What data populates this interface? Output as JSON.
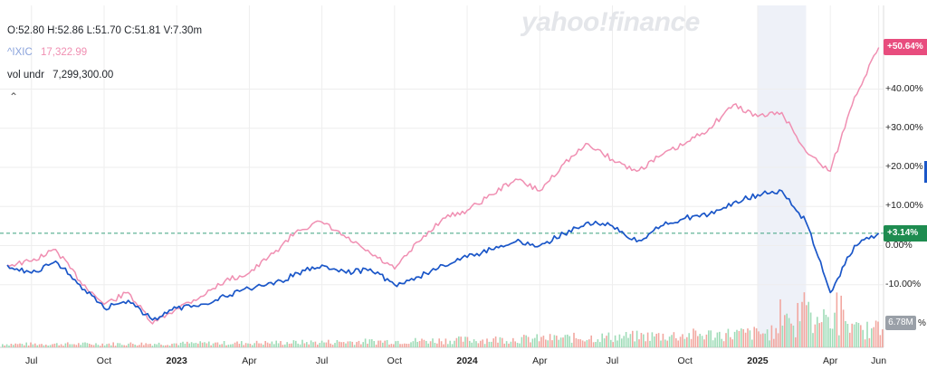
{
  "header": {
    "ohlc": "O:52.80  H:52.86  L:51.70  C:51.81  V:7.30m",
    "compare_symbol": "^IXIC",
    "compare_value": "17,322.99",
    "vol_label": "vol undr",
    "vol_value": "7,299,300.00",
    "collapse_icon": "chevron-up-icon",
    "logo": "yahoo!finance"
  },
  "colors": {
    "main": "#1a56c8",
    "compare": "#f08fb2",
    "vol_up": "#9fdcb8",
    "vol_down": "#f2a7a0",
    "grid": "#eeeeee",
    "highlight": "#eef1f8",
    "badge_compare": "#e84d7e",
    "badge_main": "#1e8c50"
  },
  "badges": {
    "compare_pct": "+50.64%",
    "main_pct": "+3.14%",
    "volume": "6.78M",
    "volume_unit": "%"
  },
  "chart_data": {
    "type": "line",
    "x_start": "2022-06",
    "x_end": "2025-06",
    "ylim": [
      -20,
      60
    ],
    "yticks": [
      "+40.00%",
      "+30.00%",
      "+20.00%",
      "+10.00%",
      "0.00%",
      "-10.00%"
    ],
    "xticks": [
      "Jul",
      "Oct",
      "2023",
      "Apr",
      "Jul",
      "Oct",
      "2024",
      "Apr",
      "Jul",
      "Oct",
      "2025",
      "Apr",
      "Jun"
    ],
    "xticks_bold": [
      "2023",
      "2024",
      "2025"
    ],
    "highlight_range": [
      "2025-01",
      "2025-03"
    ],
    "baseline": 3.14,
    "series": [
      {
        "name": "^IXIC",
        "x": [
          "2022-06",
          "2022-07",
          "2022-08",
          "2022-09",
          "2022-10",
          "2022-11",
          "2022-12",
          "2023-01",
          "2023-02",
          "2023-03",
          "2023-04",
          "2023-05",
          "2023-06",
          "2023-07",
          "2023-08",
          "2023-09",
          "2023-10",
          "2023-11",
          "2023-12",
          "2024-01",
          "2024-02",
          "2024-03",
          "2024-04",
          "2024-05",
          "2024-06",
          "2024-07",
          "2024-08",
          "2024-09",
          "2024-10",
          "2024-11",
          "2024-12",
          "2025-01",
          "2025-02",
          "2025-03",
          "2025-04",
          "2025-05",
          "2025-06"
        ],
        "values": [
          -5,
          -4,
          -1,
          -9,
          -15,
          -12,
          -20,
          -16,
          -13,
          -9,
          -7,
          -2,
          4,
          6,
          2,
          -2,
          -6,
          1,
          7,
          9,
          13,
          17,
          14,
          21,
          26,
          22,
          19,
          23,
          26,
          30,
          36,
          33,
          34,
          24,
          19,
          38,
          50.64
        ]
      },
      {
        "name": "",
        "x": [
          "2022-06",
          "2022-07",
          "2022-08",
          "2022-09",
          "2022-10",
          "2022-11",
          "2022-12",
          "2023-01",
          "2023-02",
          "2023-03",
          "2023-04",
          "2023-05",
          "2023-06",
          "2023-07",
          "2023-08",
          "2023-09",
          "2023-10",
          "2023-11",
          "2023-12",
          "2024-01",
          "2024-02",
          "2024-03",
          "2024-04",
          "2024-05",
          "2024-06",
          "2024-07",
          "2024-08",
          "2024-09",
          "2024-10",
          "2024-11",
          "2024-12",
          "2025-01",
          "2025-02",
          "2025-03",
          "2025-04",
          "2025-05",
          "2025-06"
        ],
        "values": [
          -5,
          -7,
          -4,
          -10,
          -16,
          -14,
          -19,
          -16,
          -15,
          -13,
          -11,
          -10,
          -7,
          -5,
          -7,
          -6,
          -10,
          -8,
          -5,
          -3,
          -1,
          1,
          0,
          3,
          6,
          5,
          1,
          5,
          7,
          8,
          11,
          13,
          14,
          6,
          -12,
          0,
          3.14
        ]
      }
    ]
  }
}
